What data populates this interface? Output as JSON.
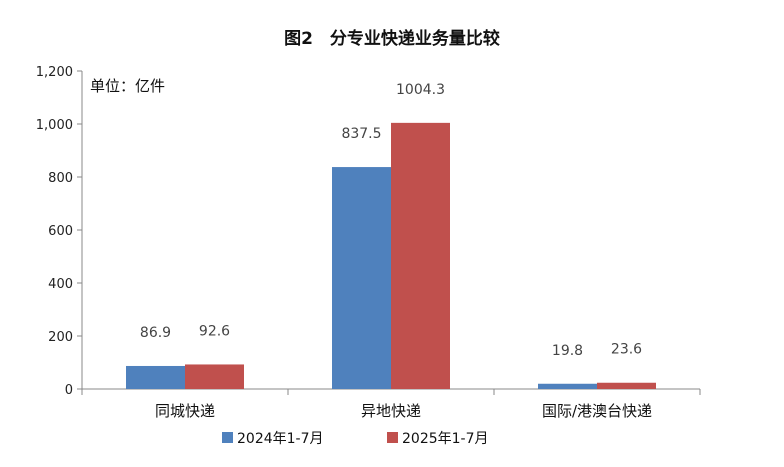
{
  "chart_data": {
    "type": "bar",
    "title": "图2　分专业快递业务量比较",
    "unit_label": "单位：亿件",
    "categories": [
      "同城快递",
      "异地快递",
      "国际/港澳台快递"
    ],
    "series": [
      {
        "name": "2024年1-7月",
        "color": "#4f81bd",
        "values": [
          86.9,
          837.5,
          19.8
        ],
        "labels": [
          "86.9",
          "837.5",
          "19.8"
        ]
      },
      {
        "name": "2025年1-7月",
        "color": "#c0504d",
        "values": [
          92.6,
          1004.3,
          23.6
        ],
        "labels": [
          "92.6",
          "1004.3",
          "23.6"
        ]
      }
    ],
    "ylim": [
      0,
      1200
    ],
    "yticks": [
      0,
      200,
      400,
      600,
      800,
      1000,
      1200
    ],
    "ytick_labels": [
      "0",
      "200",
      "400",
      "600",
      "800",
      "1,000",
      "1,200"
    ],
    "grid": false,
    "legend_position": "bottom"
  }
}
